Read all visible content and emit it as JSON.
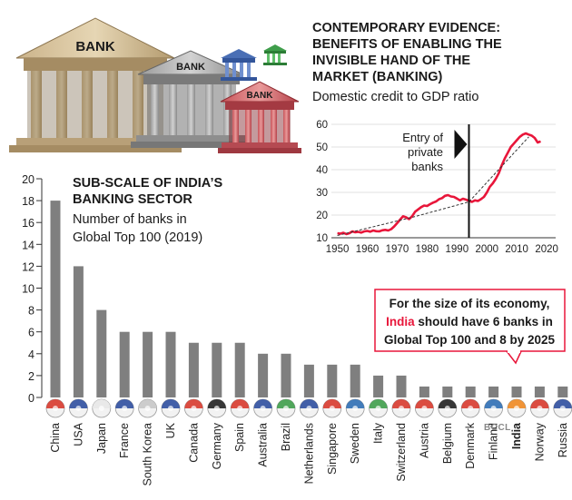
{
  "illustration": {
    "bank_label": "BANK"
  },
  "watermark": "BCCL",
  "chart_data": [
    {
      "type": "bar",
      "title": "SUB-SCALE OF INDIA’S BANKING SECTOR",
      "subtitle": "Number of banks in Global Top 100 (2019)",
      "title_lines": [
        "SUB-SCALE OF INDIA’S",
        "BANKING SECTOR"
      ],
      "subtitle_lines": [
        "Number of banks in",
        "Global Top 100 (2019)"
      ],
      "categories": [
        "China",
        "USA",
        "Japan",
        "France",
        "South Korea",
        "UK",
        "Canada",
        "Germany",
        "Spain",
        "Australia",
        "Brazil",
        "Netherlands",
        "Singapore",
        "Sweden",
        "Italy",
        "Switzerland",
        "Austria",
        "Belgium",
        "Denmark",
        "Finland",
        "India",
        "Norway",
        "Russia"
      ],
      "values": [
        18,
        12,
        8,
        6,
        6,
        6,
        5,
        5,
        5,
        4,
        4,
        3,
        3,
        3,
        2,
        2,
        1,
        1,
        1,
        1,
        1,
        1,
        1
      ],
      "yticks": [
        0,
        2,
        4,
        6,
        8,
        10,
        12,
        14,
        16,
        18,
        20
      ],
      "ylim": [
        0,
        20
      ],
      "highlight": "India",
      "bar_color": "#7f7f7f",
      "highlight_color": "#e8163a",
      "annotation": {
        "lines": [
          [
            {
              "t": "For the size of its economy,",
              "hl": false
            }
          ],
          [
            {
              "t": "India",
              "hl": true
            },
            {
              "t": " should have 6 banks in",
              "hl": false
            }
          ],
          [
            {
              "t": "Global Top 100 and 8 by 2025",
              "hl": false
            }
          ]
        ],
        "border_color": "#e8163a"
      }
    },
    {
      "type": "line",
      "title": "CONTEMPORARY EVIDENCE: BENEFITS OF ENABLING THE INVISIBLE HAND OF THE MARKET (BANKING)",
      "subtitle": "Domestic credit to GDP ratio",
      "title_lines": [
        "CONTEMPORARY EVIDENCE:",
        "BENEFITS OF ENABLING THE",
        "INVISIBLE HAND OF THE",
        "MARKET (BANKING)"
      ],
      "xlim": [
        1948,
        2023
      ],
      "ylim": [
        10,
        60
      ],
      "xticks": [
        1950,
        1960,
        1970,
        1980,
        1990,
        2000,
        2010,
        2020
      ],
      "yticks": [
        10,
        20,
        30,
        40,
        50,
        60
      ],
      "series": [
        {
          "type": "line",
          "color": "#e8163a",
          "x": [
            1950,
            1951,
            1952,
            1953,
            1954,
            1955,
            1956,
            1957,
            1958,
            1959,
            1960,
            1961,
            1962,
            1963,
            1964,
            1965,
            1966,
            1967,
            1968,
            1969,
            1970,
            1971,
            1972,
            1973,
            1974,
            1975,
            1976,
            1977,
            1978,
            1979,
            1980,
            1981,
            1982,
            1983,
            1984,
            1985,
            1986,
            1987,
            1988,
            1989,
            1990,
            1991,
            1992,
            1993,
            1994,
            1995,
            1996,
            1997,
            1998,
            1999,
            2000,
            2001,
            2002,
            2003,
            2004,
            2005,
            2006,
            2007,
            2008,
            2009,
            2010,
            2011,
            2012,
            2013,
            2014,
            2015,
            2016,
            2017,
            2018
          ],
          "y": [
            12.0,
            11.8,
            12.2,
            11.6,
            12.0,
            12.8,
            12.4,
            12.6,
            12.3,
            12.8,
            13.0,
            12.7,
            13.2,
            12.9,
            12.8,
            13.3,
            13.5,
            13.2,
            13.8,
            15.0,
            16.5,
            18.0,
            19.5,
            19.0,
            18.2,
            19.5,
            21.5,
            22.5,
            23.5,
            24.2,
            24.0,
            24.8,
            25.5,
            26.0,
            27.0,
            27.5,
            28.5,
            28.8,
            28.2,
            28.0,
            27.3,
            26.5,
            27.2,
            26.8,
            26.3,
            25.8,
            26.5,
            26.2,
            27.0,
            28.0,
            30.0,
            32.5,
            34.0,
            36.0,
            38.5,
            42.0,
            45.0,
            47.5,
            50.0,
            51.5,
            53.0,
            54.5,
            55.5,
            56.0,
            55.5,
            55.0,
            54.0,
            52.0,
            52.5
          ]
        },
        {
          "type": "trend",
          "style": "dashed",
          "color": "#333333",
          "x": [
            1950,
            1975,
            1994,
            2014
          ],
          "y": [
            11.0,
            19.0,
            25.8,
            54.5
          ]
        }
      ],
      "marker": {
        "x": 1994,
        "label_lines": [
          "Entry of",
          "private",
          "banks"
        ]
      }
    }
  ]
}
